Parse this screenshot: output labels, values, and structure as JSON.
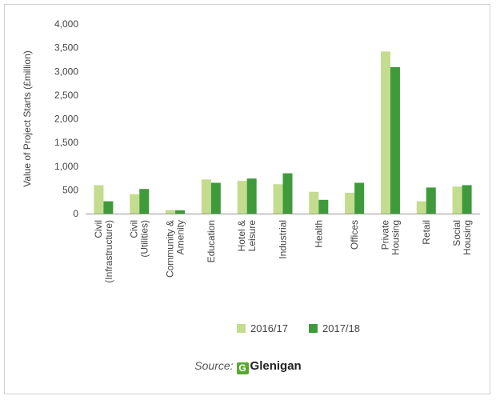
{
  "chart_data": {
    "type": "bar",
    "ylabel": "Value of Project Starts (£million)",
    "ylim": [
      0,
      4000
    ],
    "yticks": [
      0,
      500,
      1000,
      1500,
      2000,
      2500,
      3000,
      3500,
      4000
    ],
    "ytick_labels": [
      "0",
      "500",
      "1,000",
      "1,500",
      "2,000",
      "2,500",
      "3,000",
      "3,500",
      "4,000"
    ],
    "categories": [
      [
        "Civil",
        "(Infrastructure)"
      ],
      [
        "Civil",
        "(Utilities)"
      ],
      [
        "Community &",
        "Amenity"
      ],
      [
        "Education"
      ],
      [
        "Hotel &",
        "Leisure"
      ],
      [
        "Industrial"
      ],
      [
        "Health"
      ],
      [
        "Offices"
      ],
      [
        "Private",
        "Housing"
      ],
      [
        "Retail"
      ],
      [
        "Social",
        "Housing"
      ]
    ],
    "series": [
      {
        "name": "2016/17",
        "color": "#c3dc8e",
        "values": [
          600,
          410,
          75,
          720,
          690,
          620,
          460,
          440,
          3420,
          260,
          570
        ]
      },
      {
        "name": "2017/18",
        "color": "#3f9a3c",
        "values": [
          260,
          520,
          70,
          650,
          740,
          850,
          290,
          650,
          3090,
          550,
          600
        ]
      }
    ],
    "legend_position": "bottom",
    "grid": false
  },
  "source": {
    "label": "Source:",
    "brand_icon": "G",
    "brand": "Glenigan"
  }
}
